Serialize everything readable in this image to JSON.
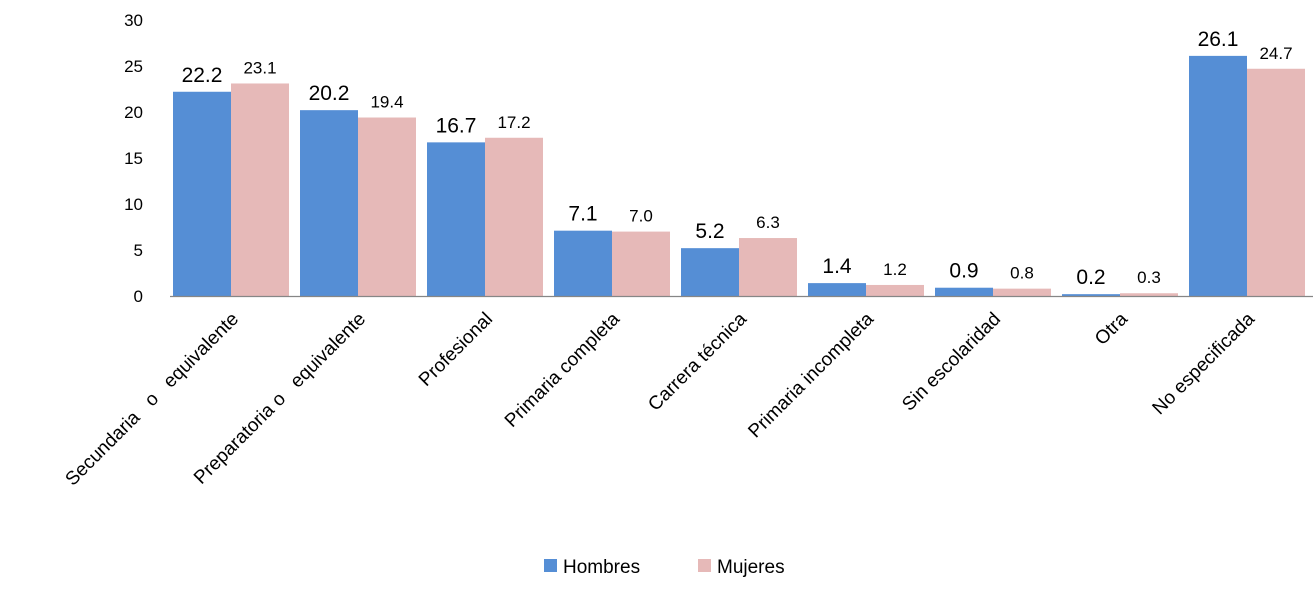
{
  "chart_data": {
    "type": "bar",
    "categories": [
      "Secundaria   o   equivalente",
      "Preparatoria o   equivalente",
      "Profesional",
      "Primaria completa",
      "Carrera técnica",
      "Primaria incompleta",
      "Sin escolaridad",
      "Otra",
      "No especificada"
    ],
    "series": [
      {
        "name": "Hombres",
        "color": "#558ED5",
        "values": [
          22.2,
          20.2,
          16.7,
          7.1,
          5.2,
          1.4,
          0.9,
          0.2,
          26.1
        ],
        "labels": [
          "22.2",
          "20.2",
          "16.7",
          "7.1",
          "5.2",
          "1.4",
          "0.9",
          "0.2",
          "26.1"
        ]
      },
      {
        "name": "Mujeres",
        "color": "#E6B9B8",
        "values": [
          23.1,
          19.4,
          17.2,
          7.0,
          6.3,
          1.2,
          0.8,
          0.3,
          24.7
        ],
        "labels": [
          "23.1",
          "19.4",
          "17.2",
          "7.0",
          "6.3",
          "1.2",
          "0.8",
          "0.3",
          "24.7"
        ]
      }
    ],
    "ylim": [
      0,
      30
    ],
    "yticks": [
      "0",
      "5",
      "10",
      "15",
      "20",
      "25",
      "30"
    ],
    "grid": false,
    "legend_position": "bottom",
    "title": "",
    "xlabel": "",
    "ylabel": ""
  }
}
